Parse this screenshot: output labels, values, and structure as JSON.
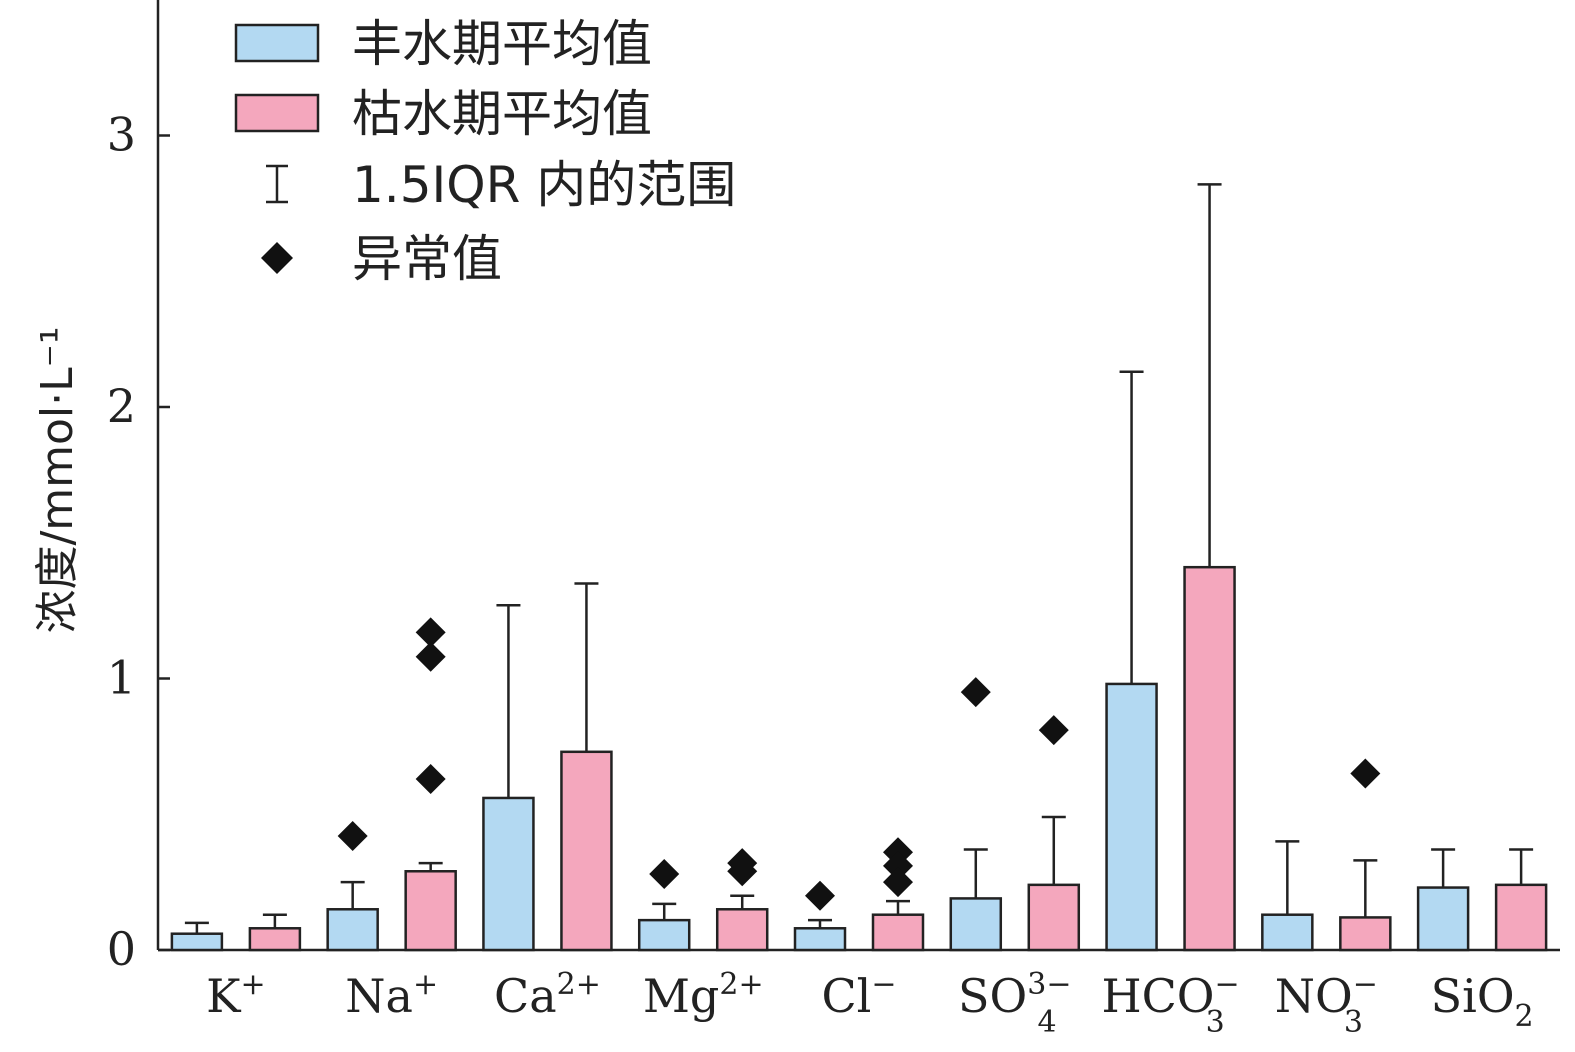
{
  "chart_data": {
    "type": "bar",
    "ylabel": "浓度/mmol·L⁻¹",
    "ylim": [
      0,
      3.5
    ],
    "yticks": [
      "0",
      "1",
      "2",
      "3"
    ],
    "categories": [
      {
        "base": "K",
        "sup": "+",
        "sub": ""
      },
      {
        "base": "Na",
        "sup": "+",
        "sub": ""
      },
      {
        "base": "Ca",
        "sup": "2+",
        "sub": ""
      },
      {
        "base": "Mg",
        "sup": "2+",
        "sub": ""
      },
      {
        "base": "Cl",
        "sup": "−",
        "sub": ""
      },
      {
        "base": "SO",
        "sup": "3−",
        "sub": "4"
      },
      {
        "base": "HCO",
        "sup": "−",
        "sub": "3"
      },
      {
        "base": "NO",
        "sup": "−",
        "sub": "3"
      },
      {
        "base": "SiO",
        "sup": "",
        "sub": "2"
      }
    ],
    "series": [
      {
        "name": "丰水期平均值",
        "color": "#b3d9f2",
        "values": [
          0.06,
          0.15,
          0.56,
          0.11,
          0.08,
          0.19,
          0.98,
          0.13,
          0.23
        ],
        "whisker_top": [
          0.1,
          0.25,
          1.27,
          0.17,
          0.11,
          0.37,
          2.13,
          0.4,
          0.37
        ],
        "outliers": [
          [],
          [
            0.42
          ],
          [],
          [
            0.28
          ],
          [
            0.2
          ],
          [
            0.95
          ],
          [],
          [],
          []
        ]
      },
      {
        "name": "枯水期平均值",
        "color": "#f4a7bd",
        "values": [
          0.08,
          0.29,
          0.73,
          0.15,
          0.13,
          0.24,
          1.41,
          0.12,
          0.24
        ],
        "whisker_top": [
          0.13,
          0.32,
          1.35,
          0.2,
          0.18,
          0.49,
          2.82,
          0.33,
          0.37
        ],
        "outliers": [
          [],
          [
            1.17,
            1.08,
            0.63
          ],
          [],
          [
            0.32,
            0.29
          ],
          [
            0.36,
            0.31,
            0.25
          ],
          [
            0.81
          ],
          [],
          [
            0.65
          ],
          []
        ]
      }
    ],
    "legend": {
      "position": "top-left",
      "items": [
        {
          "label": "丰水期平均值",
          "kind": "box",
          "color": "#b3d9f2"
        },
        {
          "label": "枯水期平均值",
          "kind": "box",
          "color": "#f4a7bd"
        },
        {
          "label": "1.5IQR 内的范围",
          "kind": "whisker",
          "color": "#222222"
        },
        {
          "label": "异常值",
          "kind": "diamond",
          "color": "#111111"
        }
      ]
    },
    "grid": false
  }
}
